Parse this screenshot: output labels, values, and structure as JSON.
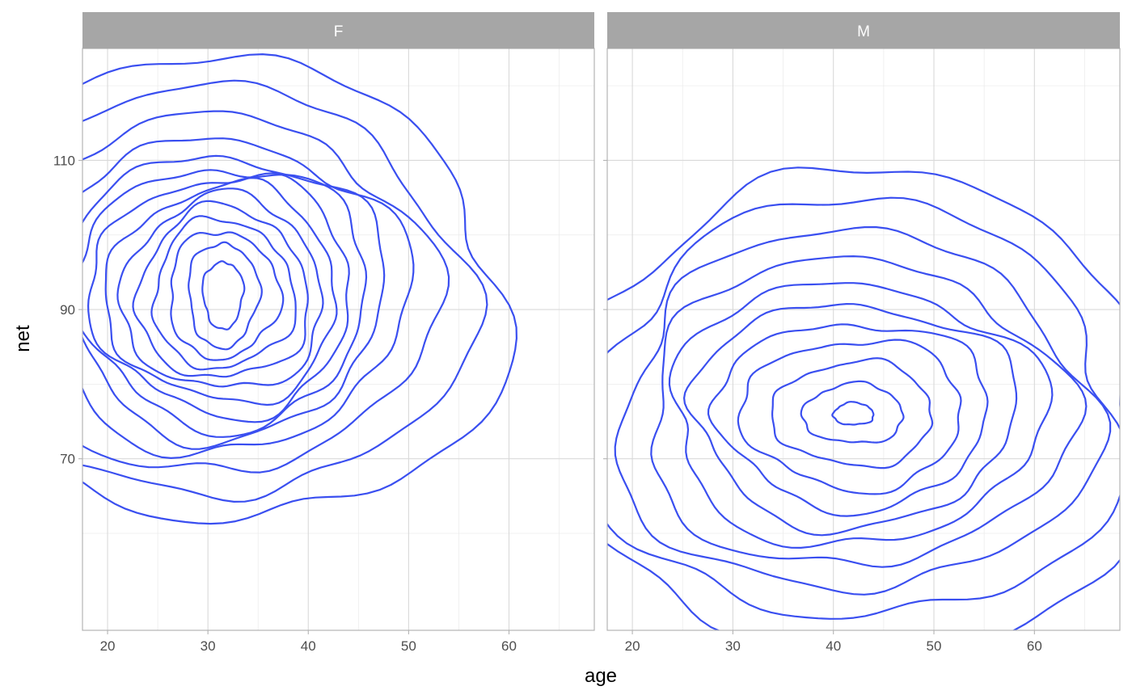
{
  "chart_data": {
    "type": "density_contour",
    "xlabel": "age",
    "ylabel": "net",
    "xlim": [
      17.5,
      68.5
    ],
    "ylim": [
      47,
      125
    ],
    "x_ticks": [
      20,
      30,
      40,
      50,
      60
    ],
    "y_ticks": [
      70,
      90,
      110
    ],
    "grid": true,
    "line_color": "#3a4ff0",
    "strip_color": "#a6a6a6",
    "panel_border_color": "#b3b3b3",
    "panels": [
      {
        "facet": "F",
        "center": [
          31.5,
          92
        ],
        "contours": [
          {
            "rx": 2.0,
            "ry": 4.5
          },
          {
            "rx": 3.5,
            "ry": 7.0
          },
          {
            "rx": 5.5,
            "ry": 8.5
          },
          {
            "rx": 7.0,
            "ry": 10.0
          },
          {
            "rx": 8.5,
            "ry": 11.5
          },
          {
            "rx": 10.0,
            "ry": 13.0
          },
          {
            "rx": 11.5,
            "ry": 14.5
          },
          {
            "rx": 13.0,
            "ry": 16.0
          },
          {
            "rx": 14.5,
            "ry": 17.5
          },
          {
            "rx": 16.0,
            "ry": 19.0
          },
          {
            "rx": 18.0,
            "ry": 21.0
          },
          {
            "rx": 20.5,
            "ry": 24.0
          },
          {
            "rx": 24.0,
            "ry": 27.5
          },
          {
            "rx": 28.0,
            "ry": 31.0
          }
        ]
      },
      {
        "facet": "M",
        "center": [
          42,
          76
        ],
        "contours": [
          {
            "rx": 2.0,
            "ry": 1.5
          },
          {
            "rx": 5.0,
            "ry": 4.0
          },
          {
            "rx": 8.0,
            "ry": 7.0
          },
          {
            "rx": 11.0,
            "ry": 10.0
          },
          {
            "rx": 13.5,
            "ry": 12.5
          },
          {
            "rx": 16.0,
            "ry": 15.0
          },
          {
            "rx": 18.5,
            "ry": 17.5
          },
          {
            "rx": 21.0,
            "ry": 20.5
          },
          {
            "rx": 23.5,
            "ry": 24.0
          },
          {
            "rx": 26.5,
            "ry": 28.0
          },
          {
            "rx": 29.5,
            "ry": 32.0
          }
        ]
      }
    ]
  }
}
